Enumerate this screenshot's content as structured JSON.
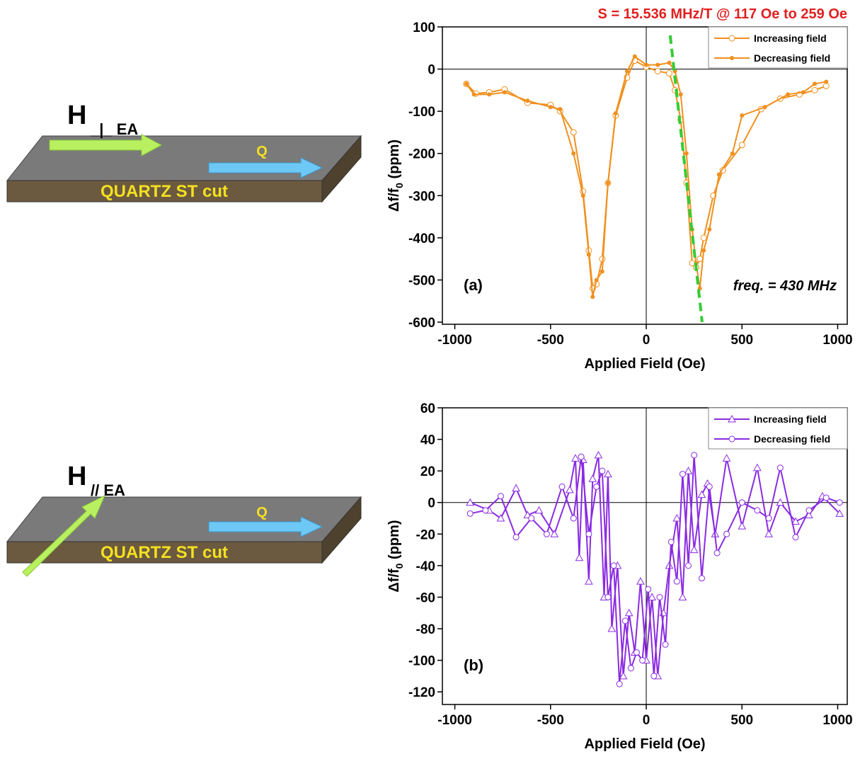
{
  "diagrams": [
    {
      "h": "H",
      "sub": "_|_ EA",
      "q": "Q",
      "substrate": "QUARTZ ST cut"
    },
    {
      "h": "H",
      "sub": "// EA",
      "q": "Q",
      "substrate": "QUARTZ ST cut"
    }
  ],
  "chart_data": [
    {
      "type": "line",
      "title": "S = 15.536 MHz/T @ 117 Oe to 259 Oe",
      "xlabel": "Applied Field (Oe)",
      "ylabel": [
        "Δf/f",
        "0",
        " (ppm)"
      ],
      "annotations": [
        "(a)",
        "freq. = 430 MHz"
      ],
      "xlim": [
        -1065,
        1050
      ],
      "ylim": [
        -605,
        100
      ],
      "xticks": [
        -1000,
        -500,
        0,
        500,
        1000
      ],
      "yticks": [
        -600,
        -500,
        -400,
        -300,
        -200,
        -100,
        0,
        100
      ],
      "legend": "upper right",
      "series": [
        {
          "name": "Increasing field",
          "color": "#f0901e",
          "marker": "open-circle",
          "x": [
            -940,
            -890,
            -820,
            -740,
            -620,
            -500,
            -450,
            -380,
            -330,
            -300,
            -280,
            -260,
            -230,
            -200,
            -160,
            -100,
            -60,
            0,
            60,
            120,
            150,
            180,
            210,
            240,
            260,
            280,
            300,
            350,
            400,
            500,
            600,
            700,
            800,
            880,
            940
          ],
          "values": [
            -35,
            -58,
            -55,
            -48,
            -80,
            -85,
            -100,
            -150,
            -290,
            -430,
            -520,
            -510,
            -450,
            -270,
            -110,
            -20,
            20,
            5,
            -5,
            -10,
            -50,
            -120,
            -270,
            -460,
            -470,
            -450,
            -400,
            -300,
            -240,
            -180,
            -95,
            -70,
            -60,
            -50,
            -40
          ]
        },
        {
          "name": "Decreasing field",
          "color": "#f0901e",
          "marker": "dot",
          "x": [
            940,
            880,
            820,
            740,
            620,
            500,
            450,
            380,
            330,
            300,
            280,
            260,
            240,
            210,
            180,
            150,
            120,
            60,
            0,
            -60,
            -100,
            -160,
            -200,
            -230,
            -260,
            -280,
            -300,
            -330,
            -380,
            -450,
            -500,
            -620,
            -740,
            -820,
            -900,
            -940
          ],
          "values": [
            -30,
            -35,
            -55,
            -60,
            -90,
            -110,
            -200,
            -250,
            -380,
            -430,
            -520,
            -460,
            -380,
            -200,
            -60,
            -5,
            15,
            10,
            10,
            30,
            -5,
            -105,
            -270,
            -480,
            -500,
            -540,
            -440,
            -300,
            -200,
            -95,
            -90,
            -75,
            -55,
            -60,
            -60,
            -35
          ]
        }
      ],
      "fit": {
        "color": "#33cc33",
        "x": [
          125,
          292
        ],
        "values": [
          80,
          -600
        ]
      }
    },
    {
      "type": "line",
      "xlabel": "Applied Field (Oe)",
      "ylabel": [
        "Δf/f",
        "0",
        " (ppm)"
      ],
      "annotations": [
        "(b)"
      ],
      "xlim": [
        -1065,
        1050
      ],
      "ylim": [
        -128,
        60
      ],
      "xticks": [
        -1000,
        -500,
        0,
        500,
        1000
      ],
      "yticks": [
        -120,
        -100,
        -80,
        -60,
        -40,
        -20,
        0,
        20,
        40,
        60
      ],
      "legend": "upper right",
      "series": [
        {
          "name": "Increasing field",
          "color": "#8a2be2",
          "marker": "open-triangle",
          "x": [
            -920,
            -820,
            -760,
            -680,
            -620,
            -560,
            -480,
            -400,
            -370,
            -350,
            -330,
            -300,
            -280,
            -250,
            -220,
            -200,
            -180,
            -150,
            -120,
            -90,
            -60,
            -30,
            0,
            30,
            60,
            90,
            120,
            160,
            190,
            220,
            250,
            290,
            320,
            360,
            420,
            500,
            580,
            640,
            700,
            780,
            850,
            920,
            1010
          ],
          "values": [
            0,
            -5,
            -10,
            9,
            -8,
            -5,
            -20,
            8,
            28,
            -35,
            27,
            -50,
            15,
            30,
            -60,
            18,
            -80,
            -40,
            -110,
            -70,
            -95,
            -50,
            -100,
            -60,
            -110,
            -70,
            -40,
            -10,
            -60,
            20,
            -30,
            5,
            12,
            -20,
            28,
            -15,
            22,
            -20,
            0,
            -12,
            -8,
            4,
            -7
          ]
        },
        {
          "name": "Decreasing field",
          "color": "#8a2be2",
          "marker": "open-circle",
          "x": [
            1010,
            940,
            850,
            780,
            700,
            640,
            580,
            500,
            420,
            370,
            330,
            290,
            250,
            220,
            190,
            160,
            130,
            100,
            70,
            40,
            10,
            -20,
            -50,
            -80,
            -110,
            -140,
            -170,
            -200,
            -230,
            -260,
            -300,
            -340,
            -380,
            -440,
            -520,
            -600,
            -680,
            -760,
            -840,
            -920
          ],
          "values": [
            0,
            3,
            -5,
            -22,
            22,
            -10,
            -5,
            0,
            -20,
            -32,
            10,
            -48,
            30,
            -40,
            18,
            -50,
            -25,
            -90,
            -60,
            -110,
            -55,
            -100,
            -95,
            -105,
            -75,
            -115,
            -40,
            -60,
            20,
            10,
            -20,
            29,
            -10,
            10,
            -20,
            -10,
            -22,
            4,
            -5,
            -7
          ]
        }
      ]
    }
  ]
}
